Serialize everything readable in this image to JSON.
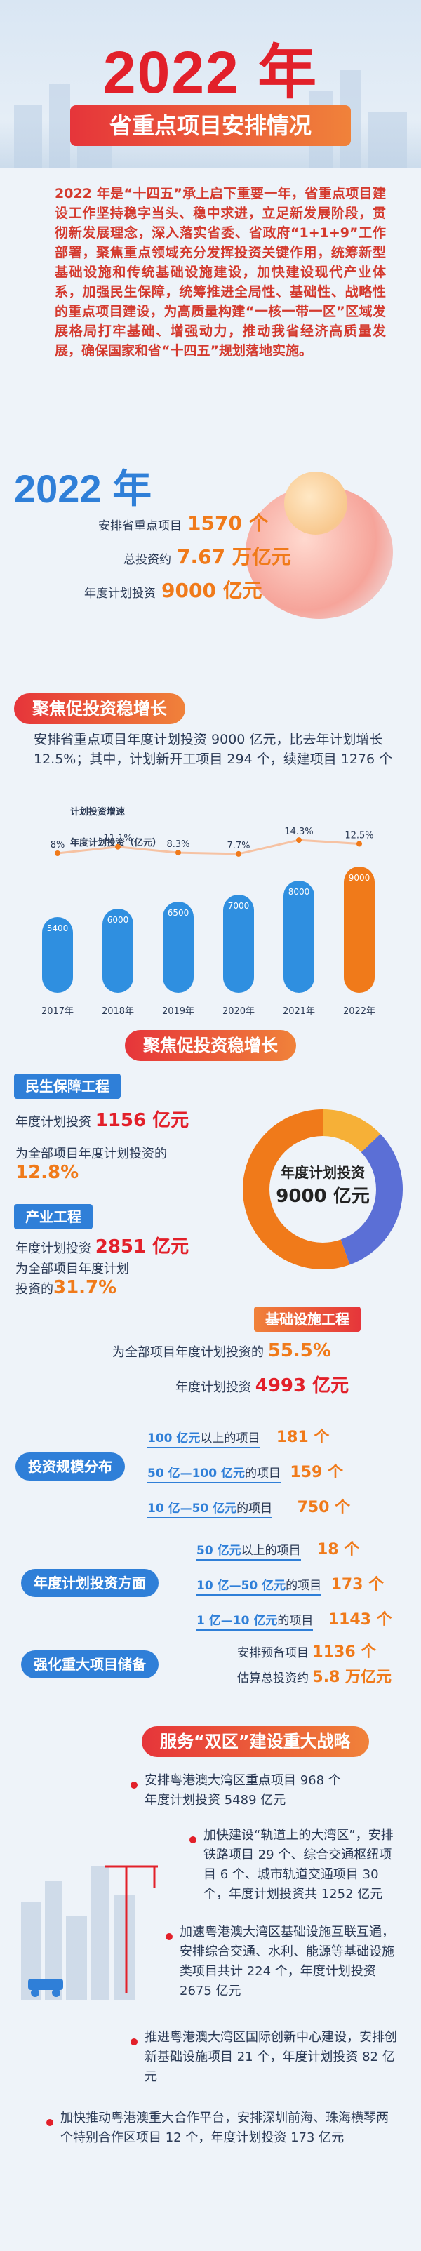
{
  "hero": {
    "title": "2022 年",
    "subtitle": "省重点项目安排情况"
  },
  "intro": {
    "text": "2022 年是“十四五”承上启下重要一年，省重点项目建设工作坚持稳字当头、稳中求进，立足新发展阶段，贯彻新发展理念，深入落实省委、省政府“1+1+9”工作部署，聚焦重点领域充分发挥投资关键作用，统筹新型基础设施和传统基础设施建设，加快建设现代产业体系，加强民生保障，统筹推进全局性、基础性、战略性的重点项目建设，为高质量构建“一核一带一区”区域发展格局打牢基础、增强动力，推动我省经济高质量发展，确保国家和省“十四五”规划落地实施。"
  },
  "summary": {
    "year": "2022 年",
    "rows": [
      {
        "label": "安排省重点项目",
        "value": "1570 个"
      },
      {
        "label": "总投资约",
        "value": "7.67 万亿元"
      },
      {
        "label": "年度计划投资",
        "value": "9000 亿元"
      }
    ]
  },
  "section1": {
    "title": "聚焦促投资稳增长",
    "paragraph": "安排省重点项目年度计划投资 9000 亿元，比去年计划增长 12.5%；其中，计划新开工项目 294 个，续建项目 1276 个"
  },
  "chart_data": {
    "type": "bar",
    "legend": [
      "计划投资增速",
      "年度计划投资（亿元）"
    ],
    "categories": [
      "2017年",
      "2018年",
      "2019年",
      "2020年",
      "2021年",
      "2022年"
    ],
    "series": [
      {
        "name": "年度计划投资（亿元）",
        "values": [
          5400,
          6000,
          6500,
          7000,
          8000,
          9000
        ]
      },
      {
        "name": "计划投资增速",
        "values": [
          "8%",
          "11.1%",
          "8.3%",
          "7.7%",
          "14.3%",
          "12.5%"
        ]
      }
    ],
    "ylim": [
      0,
      10000
    ]
  },
  "section2": {
    "title": "聚焦促投资稳增长",
    "donut_label": "年度计划投资",
    "donut_value": "9000 亿元",
    "minsheng": {
      "tag": "民生保障工程",
      "invest_label": "年度计划投资",
      "invest_value": "1156 亿元",
      "share_label": "为全部项目年度计划投资的",
      "share_value": "12.8%"
    },
    "industry": {
      "tag": "产业工程",
      "invest_label": "年度计划投资",
      "invest_value": "2851 亿元",
      "share_label_1": "为全部项目年度计划",
      "share_label_2": "投资的",
      "share_value": "31.7%"
    },
    "infra": {
      "tag": "基础设施工程",
      "share_label": "为全部项目年度计划投资的",
      "share_value": "55.5%",
      "invest_label": "年度计划投资",
      "invest_value": "4993 亿元"
    },
    "donut_segments": [
      {
        "name": "民生保障工程",
        "value": 12.8,
        "color": "#f6b037"
      },
      {
        "name": "产业工程",
        "value": 31.7,
        "color": "#5b6fd6"
      },
      {
        "name": "基础设施工程",
        "value": 55.5,
        "color": "#f07a1a"
      }
    ]
  },
  "distribution": {
    "scale_tag": "投资规模分布",
    "scale_items": [
      {
        "pre": "100 亿元",
        "post": "以上的项目",
        "num": "181 个"
      },
      {
        "pre": "50 亿—100 亿元",
        "post": "的项目",
        "num": "159 个"
      },
      {
        "pre": "10 亿—50 亿元",
        "post": "的项目",
        "num": "750 个"
      }
    ],
    "annual_tag": "年度计划投资方面",
    "annual_items": [
      {
        "pre": "50 亿元",
        "post": "以上的项目",
        "num": "18 个"
      },
      {
        "pre": "10 亿—50 亿元",
        "post": "的项目",
        "num": "173 个"
      },
      {
        "pre": "1 亿—10 亿元",
        "post": "的项目",
        "num": "1143 个"
      }
    ],
    "reserve_tag": "强化重大项目储备",
    "reserve_items": [
      {
        "label": "安排预备项目",
        "num": "1136 个"
      },
      {
        "label": "估算总投资约",
        "num": "5.8 万亿元"
      }
    ]
  },
  "section3": {
    "title": "服务“双区”建设重大战略",
    "items": [
      "安排粤港澳大湾区重点项目 968 个\n年度计划投资 5489 亿元",
      "加快建设“轨道上的大湾区”，安排铁路项目 29 个、综合交通枢纽项目 6 个、城市轨道交通项目 30 个，年度计划投资共 1252 亿元",
      "加速粤港澳大湾区基础设施互联互通，安排综合交通、水利、能源等基础设施类项目共计 224 个，年度计划投资 2675 亿元",
      "推进粤港澳大湾区国际创新中心建设，安排创新基础设施项目 21 个，年度计划投资 82 亿元",
      "加快推动粤港澳重大合作平台，安排深圳前海、珠海横琴两个特别合作区项目 12 个，年度计划投资 173 亿元"
    ]
  }
}
